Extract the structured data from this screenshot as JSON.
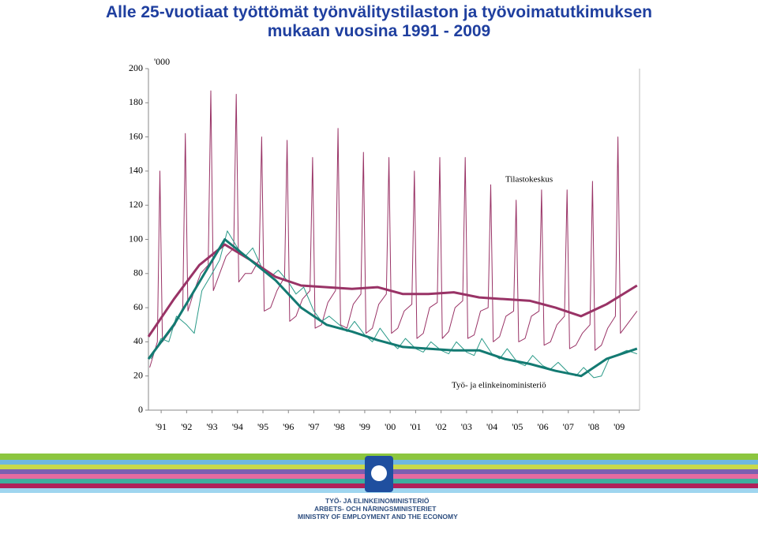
{
  "title_lines": [
    "Alle 25-vuotiaat työttömät työnvälitystilaston ja työvoimatutkimuksen",
    "mukaan vuosina 1991 - 2009"
  ],
  "chart_data": {
    "type": "line",
    "y_unit_label": "'000",
    "annotations": [
      "Tilastokeskus",
      "Työ- ja elinkeinoministeriö"
    ],
    "xlim": [
      1991,
      2010.3
    ],
    "xticks": [
      {
        "value": 1991.5,
        "label": "'91"
      },
      {
        "value": 1992.5,
        "label": "'92"
      },
      {
        "value": 1993.5,
        "label": "'93"
      },
      {
        "value": 1994.5,
        "label": "'94"
      },
      {
        "value": 1995.5,
        "label": "'95"
      },
      {
        "value": 1996.5,
        "label": "'96"
      },
      {
        "value": 1997.5,
        "label": "'97"
      },
      {
        "value": 1998.5,
        "label": "'98"
      },
      {
        "value": 1999.5,
        "label": "'99"
      },
      {
        "value": 2000.5,
        "label": "'00"
      },
      {
        "value": 2001.5,
        "label": "'01"
      },
      {
        "value": 2002.5,
        "label": "'02"
      },
      {
        "value": 2003.5,
        "label": "'03"
      },
      {
        "value": 2004.5,
        "label": "'04"
      },
      {
        "value": 2005.5,
        "label": "'05"
      },
      {
        "value": 2006.5,
        "label": "'06"
      },
      {
        "value": 2007.5,
        "label": "'07"
      },
      {
        "value": 2008.5,
        "label": "'08"
      },
      {
        "value": 2009.5,
        "label": "'09"
      }
    ],
    "ylim": [
      0,
      200
    ],
    "yticks": [
      0,
      20,
      40,
      60,
      80,
      100,
      120,
      140,
      160,
      180,
      200
    ],
    "series": [
      {
        "color": "#993366",
        "width": 1,
        "x": [
          1991.05,
          1991.35,
          1991.45,
          1991.55,
          1991.8,
          1992.05,
          1992.35,
          1992.45,
          1992.55,
          1992.8,
          1993.05,
          1993.35,
          1993.45,
          1993.55,
          1993.8,
          1994.05,
          1994.35,
          1994.45,
          1994.55,
          1994.8,
          1995.05,
          1995.35,
          1995.45,
          1995.55,
          1995.8,
          1996.05,
          1996.35,
          1996.45,
          1996.55,
          1996.8,
          1997.05,
          1997.35,
          1997.45,
          1997.55,
          1997.8,
          1998.05,
          1998.35,
          1998.45,
          1998.55,
          1998.8,
          1999.05,
          1999.35,
          1999.45,
          1999.55,
          1999.8,
          2000.05,
          2000.35,
          2000.45,
          2000.55,
          2000.8,
          2001.05,
          2001.35,
          2001.45,
          2001.55,
          2001.8,
          2002.05,
          2002.35,
          2002.45,
          2002.55,
          2002.8,
          2003.05,
          2003.35,
          2003.45,
          2003.55,
          2003.8,
          2004.05,
          2004.35,
          2004.45,
          2004.55,
          2004.8,
          2005.05,
          2005.35,
          2005.45,
          2005.55,
          2005.8,
          2006.05,
          2006.35,
          2006.45,
          2006.55,
          2006.8,
          2007.05,
          2007.35,
          2007.45,
          2007.55,
          2007.8,
          2008.05,
          2008.35,
          2008.45,
          2008.55,
          2008.8,
          2009.05,
          2009.35,
          2009.45,
          2009.55,
          2009.8,
          2010.2
        ],
        "values": [
          25,
          40,
          140,
          40,
          45,
          50,
          60,
          162,
          58,
          70,
          80,
          85,
          187,
          70,
          80,
          90,
          95,
          185,
          75,
          80,
          80,
          88,
          160,
          58,
          60,
          70,
          78,
          158,
          52,
          55,
          65,
          70,
          148,
          48,
          50,
          63,
          70,
          165,
          50,
          48,
          62,
          68,
          151,
          45,
          48,
          62,
          68,
          148,
          45,
          48,
          58,
          62,
          140,
          42,
          45,
          60,
          63,
          148,
          42,
          46,
          60,
          64,
          148,
          42,
          44,
          58,
          60,
          132,
          40,
          43,
          55,
          58,
          123,
          40,
          42,
          55,
          58,
          129,
          38,
          40,
          50,
          55,
          129,
          36,
          38,
          45,
          50,
          134,
          35,
          38,
          48,
          55,
          160,
          45,
          50,
          58
        ]
      },
      {
        "color": "#2a9a88",
        "width": 1,
        "x": [
          1991.1,
          1991.5,
          1991.8,
          1992.1,
          1992.5,
          1992.8,
          1993.1,
          1993.5,
          1993.8,
          1994.1,
          1994.5,
          1994.8,
          1995.1,
          1995.5,
          1995.8,
          1996.1,
          1996.5,
          1996.8,
          1997.1,
          1997.5,
          1997.8,
          1998.1,
          1998.5,
          1998.8,
          1999.1,
          1999.5,
          1999.8,
          2000.1,
          2000.5,
          2000.8,
          2001.1,
          2001.5,
          2001.8,
          2002.1,
          2002.5,
          2002.8,
          2003.1,
          2003.5,
          2003.8,
          2004.1,
          2004.5,
          2004.8,
          2005.1,
          2005.5,
          2005.8,
          2006.1,
          2006.5,
          2006.8,
          2007.1,
          2007.5,
          2007.8,
          2008.1,
          2008.5,
          2008.8,
          2009.1,
          2009.5,
          2009.8,
          2010.2
        ],
        "values": [
          30,
          42,
          40,
          55,
          50,
          45,
          70,
          80,
          88,
          105,
          95,
          90,
          95,
          82,
          78,
          82,
          75,
          68,
          72,
          58,
          52,
          55,
          50,
          46,
          52,
          44,
          40,
          48,
          40,
          36,
          42,
          36,
          34,
          40,
          35,
          33,
          40,
          34,
          32,
          42,
          33,
          30,
          36,
          28,
          26,
          32,
          26,
          24,
          28,
          22,
          20,
          25,
          19,
          20,
          30,
          33,
          35,
          33
        ]
      },
      {
        "color": "#993366",
        "width": 3,
        "x": [
          1991,
          1992,
          1993,
          1994,
          1995,
          1996,
          1997,
          1998,
          1999,
          2000,
          2001,
          2002,
          2003,
          2004,
          2005,
          2006,
          2007,
          2008,
          2009,
          2010.2
        ],
        "values": [
          43,
          65,
          85,
          97,
          88,
          78,
          73,
          72,
          71,
          72,
          68,
          68,
          69,
          66,
          65,
          64,
          60,
          55,
          62,
          73
        ]
      },
      {
        "color": "#137a72",
        "width": 3,
        "x": [
          1991,
          1992,
          1993,
          1994,
          1995,
          1996,
          1997,
          1998,
          1999,
          2000,
          2001,
          2002,
          2003,
          2004,
          2005,
          2006,
          2007,
          2008,
          2009,
          2010.2
        ],
        "values": [
          30,
          50,
          75,
          100,
          88,
          76,
          60,
          50,
          46,
          41,
          37,
          36,
          35,
          35,
          30,
          27,
          23,
          20,
          30,
          36
        ]
      }
    ]
  },
  "footer": [
    "TYÖ- JA ELINKEINOMINISTERIÖ",
    "ARBETS- OCH NÄRINGSMINISTERIET",
    "MINISTRY OF EMPLOYMENT AND THE ECONOMY"
  ]
}
